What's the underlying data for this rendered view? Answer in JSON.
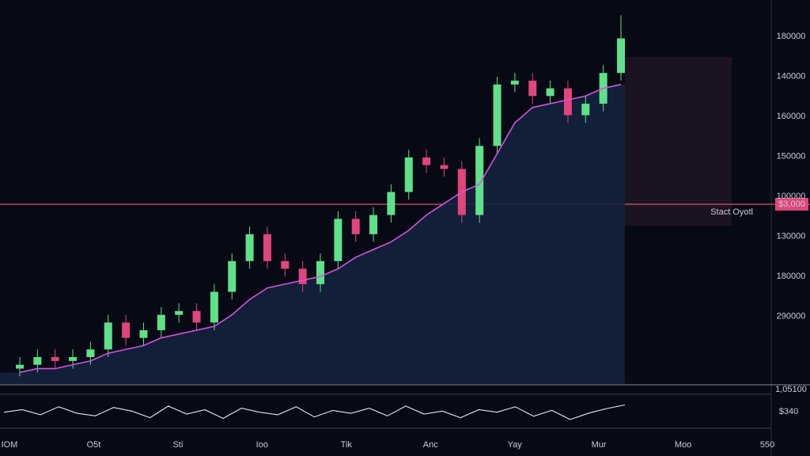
{
  "chart_data": {
    "type": "candlestick",
    "ylim": [
      0,
      100
    ],
    "open": [
      4,
      5,
      7,
      6,
      7,
      9,
      16,
      12,
      14,
      18,
      19,
      16,
      24,
      32,
      39,
      32,
      30,
      26,
      32,
      43,
      39,
      44,
      50,
      59,
      57,
      56,
      44,
      62,
      78,
      79,
      75,
      77,
      70,
      73,
      81
    ],
    "high": [
      7,
      9,
      9,
      9,
      11,
      18,
      18,
      16,
      20,
      21,
      21,
      26,
      34,
      41,
      41,
      34,
      32,
      34,
      45,
      45,
      46,
      52,
      61,
      61,
      59,
      58,
      64,
      80,
      81,
      81,
      79,
      79,
      75,
      83,
      96
    ],
    "low": [
      2,
      3,
      4,
      4,
      5,
      7,
      10,
      10,
      12,
      16,
      14,
      14,
      22,
      30,
      30,
      28,
      24,
      24,
      30,
      37,
      37,
      42,
      48,
      55,
      54,
      42,
      42,
      60,
      76,
      73,
      73,
      68,
      68,
      71,
      79
    ],
    "close": [
      5,
      7,
      6,
      7,
      9,
      16,
      12,
      14,
      18,
      19,
      16,
      24,
      32,
      39,
      32,
      30,
      26,
      32,
      43,
      39,
      44,
      50,
      59,
      57,
      56,
      44,
      62,
      78,
      79,
      75,
      77,
      70,
      73,
      81,
      90
    ],
    "moving_average": [
      3,
      4,
      4,
      5,
      6,
      8,
      9,
      10,
      12,
      13,
      14,
      15,
      18,
      22,
      25,
      26,
      27,
      28,
      30,
      33,
      35,
      37,
      40,
      44,
      47,
      50,
      52,
      60,
      68,
      72,
      73,
      74,
      75,
      77,
      78
    ],
    "up_color": "#5fe08a",
    "down_color": "#e0457b",
    "ma_color": "#d84fe0",
    "axis_labels": [
      "180000",
      "140000",
      "160000",
      "150000",
      "100000",
      "130000",
      "180000",
      "290000"
    ],
    "x_labels": [
      "IOM",
      "O5t",
      "Sti",
      "Ioo",
      "Tik",
      "Anc",
      "Yay",
      "Mur",
      "Moo",
      "550"
    ],
    "level_text": "Stact Oyotl",
    "level_price": "$3,000",
    "oscillator": {
      "ylim": [
        0,
        100
      ],
      "values": [
        55,
        62,
        48,
        70,
        52,
        45,
        68,
        58,
        40,
        72,
        50,
        62,
        38,
        66,
        55,
        48,
        70,
        42,
        60,
        52,
        66,
        45,
        72,
        50,
        58,
        40,
        62,
        55,
        70,
        44,
        60,
        35,
        52,
        65,
        75
      ],
      "top_label": "1,05100",
      "value_label": "$340"
    }
  }
}
